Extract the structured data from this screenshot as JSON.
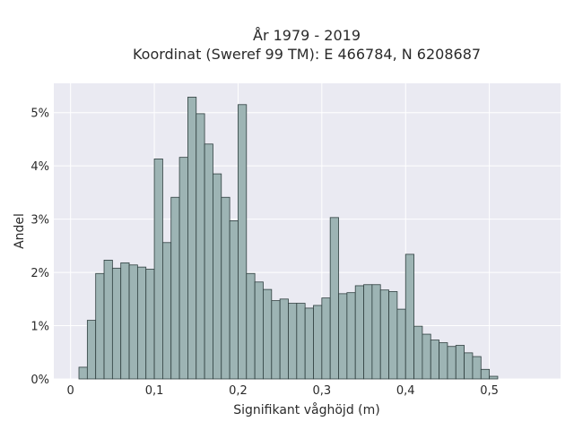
{
  "chart_data": {
    "type": "bar",
    "title_lines": [
      "År 1979 - 2019",
      "Koordinat (Sweref 99 TM): E 466784, N 6208687"
    ],
    "xlabel": "Signifikant våghöjd (m)",
    "ylabel": "Andel",
    "xlim": [
      -0.02,
      0.585
    ],
    "ylim": [
      0,
      5.55
    ],
    "x_ticks": [
      0,
      0.1,
      0.2,
      0.3,
      0.4,
      0.5
    ],
    "x_tick_labels": [
      "0",
      "0,1",
      "0,2",
      "0,3",
      "0,4",
      "0,5"
    ],
    "y_ticks": [
      0,
      1,
      2,
      3,
      4,
      5
    ],
    "y_tick_labels": [
      "0%",
      "1%",
      "2%",
      "3%",
      "4%",
      "5%"
    ],
    "bin_start": 0.01,
    "bin_width": 0.01,
    "values": [
      0.22,
      1.1,
      1.98,
      2.23,
      2.08,
      2.18,
      2.14,
      2.1,
      2.06,
      4.13,
      2.56,
      3.41,
      4.16,
      5.29,
      4.98,
      4.41,
      3.85,
      3.41,
      2.97,
      5.15,
      1.98,
      1.82,
      1.68,
      1.47,
      1.5,
      1.42,
      1.42,
      1.33,
      1.38,
      1.52,
      3.03,
      1.6,
      1.62,
      1.75,
      1.77,
      1.77,
      1.67,
      1.64,
      1.31,
      2.34,
      0.99,
      0.84,
      0.73,
      0.68,
      0.61,
      0.63,
      0.49,
      0.42,
      0.18,
      0.05
    ],
    "grid": true,
    "bar_color": "#9db4b4",
    "bar_edge_color": "#2f3f3f",
    "plot_background": "#eaeaf2",
    "grid_color": "#ffffff"
  }
}
